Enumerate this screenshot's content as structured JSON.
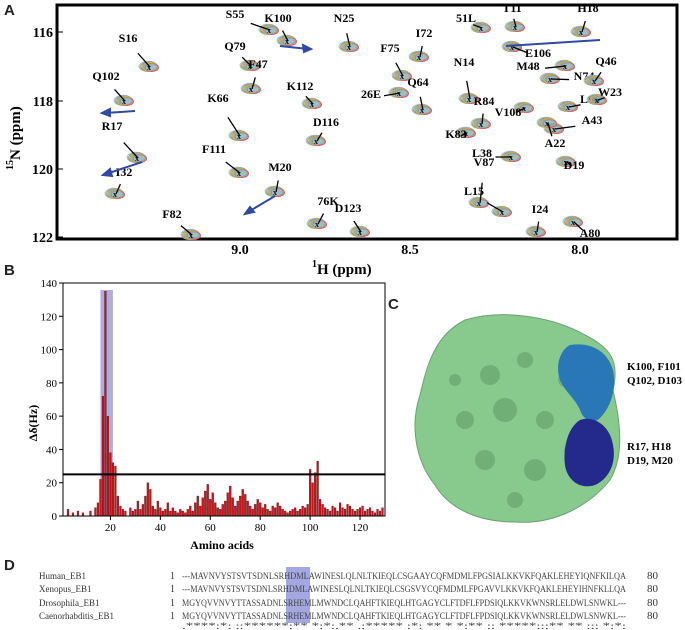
{
  "panels": {
    "a": "A",
    "b": "B",
    "c": "C",
    "d": "D"
  },
  "hsqc": {
    "xlabel_sup": "1",
    "xlabel_main": "H",
    "xlabel_unit": "(ppm)",
    "ylabel_sup": "15",
    "ylabel_main": "N",
    "ylabel_unit": "(ppm)",
    "xticks": [
      "9.0",
      "8.5",
      "8.0"
    ],
    "yticks": [
      "116",
      "118",
      "120",
      "122"
    ],
    "peaks": [
      "S55",
      "K100",
      "N25",
      "51L",
      "T11",
      "H18",
      "S16",
      "Q79",
      "F75",
      "I72",
      "E106",
      "M48",
      "Q102",
      "F47",
      "26E",
      "N14",
      "N74",
      "Q46",
      "K112",
      "Q64",
      "V108",
      "L96",
      "W23",
      "K66",
      "R84",
      "A43",
      "D116",
      "K83",
      "A22",
      "R17",
      "L38",
      "D19",
      "F111",
      "M20",
      "V87",
      "I32",
      "D123",
      "L15",
      "76K",
      "I24",
      "F82",
      "A80"
    ]
  },
  "chart_data": {
    "type": "bar",
    "xlabel": "Amino acids",
    "ylabel": "Δδ(Hz)",
    "ylim": [
      0,
      140
    ],
    "xlim": [
      1,
      130
    ],
    "xticks": [
      20,
      40,
      60,
      80,
      100,
      120
    ],
    "yticks": [
      0,
      20,
      40,
      60,
      80,
      100,
      120,
      140
    ],
    "threshold": 25,
    "highlight_range": [
      16,
      21
    ],
    "bars": [
      [
        3,
        4
      ],
      [
        5,
        2
      ],
      [
        7,
        3
      ],
      [
        9,
        2
      ],
      [
        12,
        3
      ],
      [
        14,
        5
      ],
      [
        15,
        8
      ],
      [
        16,
        22
      ],
      [
        17,
        72
      ],
      [
        18,
        135
      ],
      [
        19,
        60
      ],
      [
        20,
        38
      ],
      [
        21,
        32
      ],
      [
        22,
        30
      ],
      [
        23,
        12
      ],
      [
        24,
        6
      ],
      [
        25,
        4
      ],
      [
        26,
        3
      ],
      [
        28,
        5
      ],
      [
        29,
        3
      ],
      [
        30,
        4
      ],
      [
        31,
        9
      ],
      [
        32,
        4
      ],
      [
        33,
        7
      ],
      [
        34,
        12
      ],
      [
        35,
        20
      ],
      [
        36,
        16
      ],
      [
        37,
        6
      ],
      [
        38,
        4
      ],
      [
        39,
        9
      ],
      [
        40,
        5
      ],
      [
        41,
        3
      ],
      [
        42,
        4
      ],
      [
        43,
        8
      ],
      [
        44,
        3
      ],
      [
        45,
        5
      ],
      [
        46,
        3
      ],
      [
        47,
        2
      ],
      [
        48,
        4
      ],
      [
        49,
        3
      ],
      [
        50,
        2
      ],
      [
        51,
        4
      ],
      [
        52,
        6
      ],
      [
        53,
        3
      ],
      [
        54,
        8
      ],
      [
        55,
        12
      ],
      [
        56,
        6
      ],
      [
        57,
        11
      ],
      [
        58,
        15
      ],
      [
        59,
        19
      ],
      [
        60,
        10
      ],
      [
        61,
        14
      ],
      [
        62,
        8
      ],
      [
        63,
        5
      ],
      [
        64,
        4
      ],
      [
        65,
        7
      ],
      [
        66,
        9
      ],
      [
        67,
        14
      ],
      [
        68,
        18
      ],
      [
        69,
        11
      ],
      [
        70,
        6
      ],
      [
        71,
        9
      ],
      [
        72,
        12
      ],
      [
        73,
        16
      ],
      [
        74,
        13
      ],
      [
        75,
        9
      ],
      [
        76,
        6
      ],
      [
        77,
        4
      ],
      [
        78,
        7
      ],
      [
        79,
        10
      ],
      [
        80,
        8
      ],
      [
        81,
        5
      ],
      [
        82,
        7
      ],
      [
        83,
        4
      ],
      [
        84,
        3
      ],
      [
        85,
        6
      ],
      [
        86,
        5
      ],
      [
        87,
        8
      ],
      [
        88,
        6
      ],
      [
        89,
        4
      ],
      [
        90,
        3
      ],
      [
        91,
        2
      ],
      [
        92,
        3
      ],
      [
        93,
        4
      ],
      [
        94,
        5
      ],
      [
        95,
        3
      ],
      [
        96,
        4
      ],
      [
        97,
        6
      ],
      [
        98,
        5
      ],
      [
        99,
        7
      ],
      [
        100,
        28
      ],
      [
        101,
        20
      ],
      [
        102,
        26
      ],
      [
        103,
        33
      ],
      [
        104,
        10
      ],
      [
        105,
        7
      ],
      [
        106,
        5
      ],
      [
        107,
        4
      ],
      [
        108,
        3
      ],
      [
        109,
        6
      ],
      [
        110,
        5
      ],
      [
        111,
        3
      ],
      [
        112,
        8
      ],
      [
        113,
        5
      ],
      [
        114,
        4
      ],
      [
        115,
        7
      ],
      [
        116,
        6
      ],
      [
        117,
        4
      ],
      [
        118,
        3
      ],
      [
        119,
        4
      ],
      [
        120,
        5
      ],
      [
        121,
        6
      ],
      [
        122,
        3
      ],
      [
        123,
        4
      ],
      [
        124,
        5
      ],
      [
        125,
        3
      ],
      [
        126,
        2
      ],
      [
        127,
        4
      ],
      [
        128,
        3
      ],
      [
        129,
        5
      ]
    ]
  },
  "structure": {
    "label1a": "K100, F101",
    "label1b": "Q102, D103",
    "label2a": "R17, H18",
    "label2b": "D19, M20",
    "color_surface": "#88c98e",
    "color_site1": "#2a77b8",
    "color_site2": "#232a8c"
  },
  "alignment": {
    "rows": [
      {
        "name": "Human_EB1",
        "start": "1",
        "pre": "---MAVNVYSTSVTSDNLS",
        "hl": "RHDM",
        "post": "LAWINESLQLNLTKIEQLCSGAAYCQFMDMLFPGSIALKKVKFQAKLEHEYIQNFKILQA",
        "end": "80"
      },
      {
        "name": "Xenopus_EB1",
        "start": "1",
        "pre": "---MAVNVYSTSVTSDNLS",
        "hl": "RHDM",
        "post": "LAWINESLQLNLTKIEQLCSGSVYCQFMDMLFPGAVVLKKVKFQAKLEHEYIHNFKLLQA",
        "end": "80"
      },
      {
        "name": "Drosophila_EB1",
        "start": "1",
        "pre": "MGYQVVNVYTTASSADNLS",
        "hl": "RHEM",
        "post": "LMWNDCLQAHFTKIEQLHTGAGYCLFTDFLFPDSIQLKKVKWNSRLELDWLSNWKL---",
        "end": "80"
      },
      {
        "name": "Caenorhabditis_EB1",
        "start": "1",
        "pre": "MGYQVVNVYTTASSADNLS",
        "hl": "RHEM",
        "post": "LMWNDCLQAHFTKIEQLHTGAGYCLFTDFLFPDSIQLKKVKWNSRLELDWLSNWKL---",
        "end": "80"
      }
    ],
    "consensus": ".****:*: ::******:** *:*:.** .:***** :*: ** * *:** :: *****:::** ** ::: *:*:"
  }
}
